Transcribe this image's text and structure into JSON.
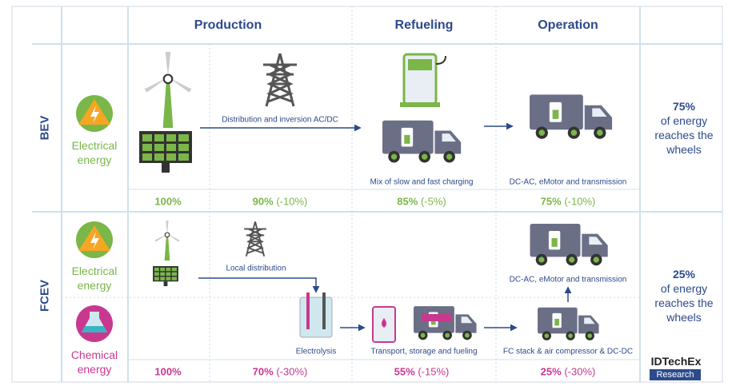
{
  "header": {
    "columns": [
      "Production",
      "Refueling",
      "Operation"
    ]
  },
  "bev": {
    "label": "BEV",
    "source": "Electrical energy",
    "steps": [
      "Distribution and inversion AC/DC",
      "Mix of slow and fast charging",
      "DC-AC, eMotor and transmission"
    ],
    "efficiency": [
      {
        "value": "100%"
      },
      {
        "value": "90%",
        "change": "(-10%)"
      },
      {
        "value": "85%",
        "change": "(-5%)"
      },
      {
        "value": "75%",
        "change": "(-10%)"
      }
    ],
    "summary": {
      "value": "75%",
      "text": "of energy reaches the wheels"
    }
  },
  "fcev": {
    "label": "FCEV",
    "sources": [
      "Electrical energy",
      "Chemical energy"
    ],
    "steps": [
      "Local distribution",
      "Electrolysis",
      "Transport, storage and fueling",
      "FC stack & air compressor & DC-DC",
      "DC-AC, eMotor and transmission"
    ],
    "efficiency": [
      {
        "value": "100%"
      },
      {
        "value": "70%",
        "change": "(-30%)"
      },
      {
        "value": "55%",
        "change": "(-15%)"
      },
      {
        "value": "25%",
        "change": "(-30%)"
      }
    ],
    "summary": {
      "value": "25%",
      "text": "of energy reaches the wheels"
    }
  },
  "logo": {
    "name": "IDTechEx",
    "sub": "Research"
  }
}
